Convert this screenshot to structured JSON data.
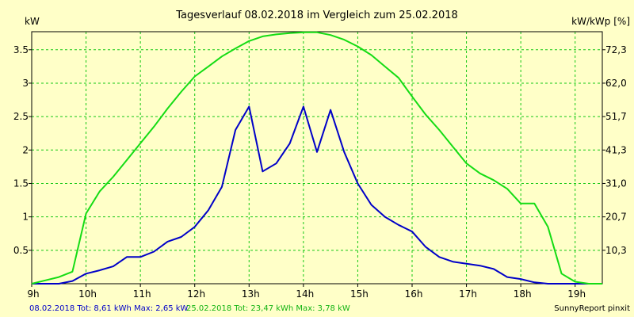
{
  "chart_data": {
    "type": "line",
    "title": "Tagesverlauf 08.02.2018 im Vergleich zum 25.02.2018",
    "ylabel_left": "kW",
    "ylabel_right": "kW/kWp [%]",
    "x_unit": "hour",
    "xlim": [
      9,
      19.5
    ],
    "ylim": [
      0,
      3.77
    ],
    "grid": true,
    "x_ticks": [
      9,
      10,
      11,
      12,
      13,
      14,
      15,
      16,
      17,
      18,
      19
    ],
    "x_tick_labels": [
      "9h",
      "10h",
      "11h",
      "12h",
      "13h",
      "14h",
      "15h",
      "16h",
      "17h",
      "18h",
      "19h"
    ],
    "y_ticks_left": [
      0.5,
      1,
      1.5,
      2,
      2.5,
      3,
      3.5
    ],
    "y_tick_labels_left": [
      "0.5",
      "1",
      "1.5",
      "2",
      "2.5",
      "3",
      "3.5"
    ],
    "y_ticks_right": [
      0.5,
      1.0,
      1.5,
      2.0,
      2.5,
      3.0,
      3.5
    ],
    "y_tick_labels_right": [
      "10,3",
      "20,7",
      "31,0",
      "41,3",
      "51,7",
      "62,0",
      "72,3"
    ],
    "series": [
      {
        "name": "08.02.2018",
        "color": "#0000c8",
        "x": [
          9.0,
          9.25,
          9.5,
          9.75,
          10.0,
          10.25,
          10.5,
          10.75,
          11.0,
          11.25,
          11.5,
          11.75,
          12.0,
          12.25,
          12.5,
          12.75,
          13.0,
          13.25,
          13.5,
          13.75,
          14.0,
          14.25,
          14.5,
          14.75,
          15.0,
          15.25,
          15.5,
          15.75,
          16.0,
          16.25,
          16.5,
          16.75,
          17.0,
          17.25,
          17.5,
          17.75,
          18.0,
          18.25,
          18.5,
          18.75,
          19.0,
          19.25,
          19.5
        ],
        "values": [
          0.0,
          0.0,
          0.0,
          0.04,
          0.15,
          0.2,
          0.26,
          0.4,
          0.4,
          0.48,
          0.63,
          0.7,
          0.85,
          1.1,
          1.45,
          2.3,
          2.65,
          1.68,
          1.8,
          2.1,
          2.65,
          1.97,
          2.6,
          1.97,
          1.5,
          1.18,
          1.0,
          0.88,
          0.78,
          0.55,
          0.4,
          0.33,
          0.3,
          0.27,
          0.22,
          0.1,
          0.07,
          0.02,
          0.0,
          0.0,
          0.0,
          0.0,
          0.0
        ]
      },
      {
        "name": "25.02.2018",
        "color": "#14dc14",
        "x": [
          9.0,
          9.25,
          9.5,
          9.75,
          10.0,
          10.25,
          10.5,
          10.75,
          11.0,
          11.25,
          11.5,
          11.75,
          12.0,
          12.25,
          12.5,
          12.75,
          13.0,
          13.25,
          13.5,
          13.75,
          14.0,
          14.25,
          14.5,
          14.75,
          15.0,
          15.25,
          15.5,
          15.75,
          16.0,
          16.25,
          16.5,
          16.75,
          17.0,
          17.25,
          17.5,
          17.75,
          18.0,
          18.25,
          18.5,
          18.75,
          19.0,
          19.25,
          19.5
        ],
        "values": [
          0.0,
          0.05,
          0.1,
          0.18,
          1.05,
          1.38,
          1.6,
          1.85,
          2.1,
          2.35,
          2.62,
          2.87,
          3.1,
          3.25,
          3.4,
          3.52,
          3.63,
          3.7,
          3.73,
          3.75,
          3.76,
          3.76,
          3.72,
          3.65,
          3.55,
          3.42,
          3.25,
          3.08,
          2.8,
          2.53,
          2.3,
          2.05,
          1.8,
          1.65,
          1.55,
          1.42,
          1.2,
          1.2,
          0.85,
          0.15,
          0.03,
          0.0,
          0.0
        ]
      }
    ]
  },
  "footer": {
    "series1_text": "08.02.2018 Tot: 8,61 kWh Max: 2,65 kW",
    "series2_text": "25.02.2018 Tot: 23,47 kWh Max: 3,78 kW",
    "credit": "SunnyReport pinxit"
  },
  "colors": {
    "background": "#ffffc8",
    "grid": "#14c814",
    "axis": "#000000"
  }
}
